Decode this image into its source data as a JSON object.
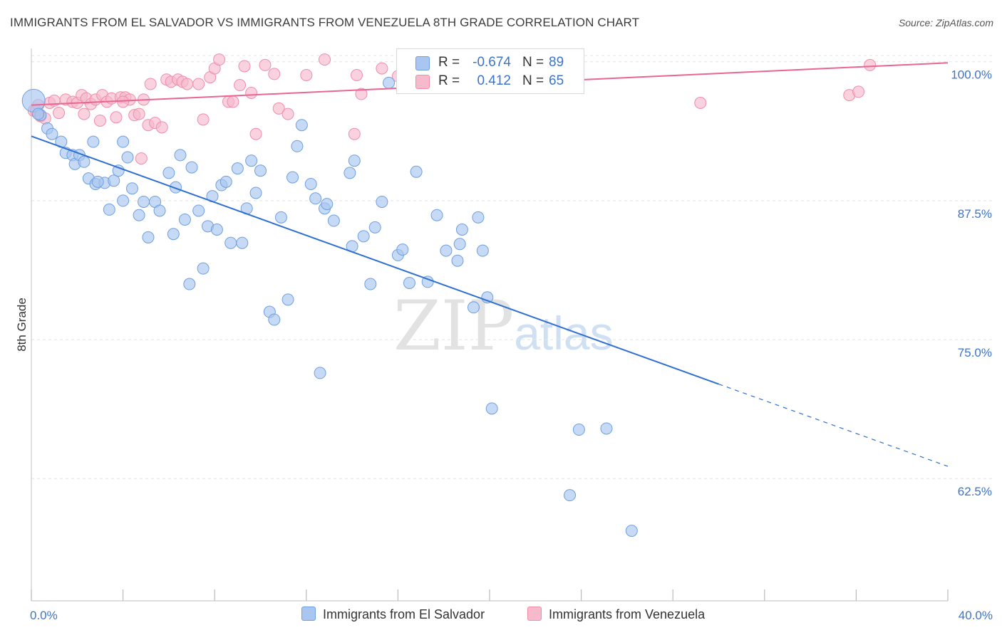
{
  "header": {
    "title": "IMMIGRANTS FROM EL SALVADOR VS IMMIGRANTS FROM VENEZUELA 8TH GRADE CORRELATION CHART",
    "source": "Source: ZipAtlas.com"
  },
  "watermark": {
    "zip": "ZIP",
    "atlas": "atlas"
  },
  "legend": {
    "r_label": "R =",
    "n_label": "N =",
    "rows": [
      {
        "r": "-0.674",
        "n": "89",
        "color": "#a8c6f0",
        "stroke": "#6f9fe0"
      },
      {
        "r": "0.412",
        "n": "65",
        "color": "#f7b9cc",
        "stroke": "#ee8eaa"
      }
    ]
  },
  "bottom_legend": {
    "series1": "Immigrants from El Salvador",
    "series2": "Immigrants from Venezuela"
  },
  "colors": {
    "blue_fill": "#a8c6f0",
    "blue_stroke": "#6f9fe0",
    "blue_line": "#2f6fd0",
    "pink_fill": "#f7b9cc",
    "pink_stroke": "#ee8eaa",
    "pink_line": "#e8668f",
    "tick_text": "#3b74c9"
  },
  "chart_data": {
    "type": "scatter",
    "title": "IMMIGRANTS FROM EL SALVADOR VS IMMIGRANTS FROM VENEZUELA 8TH GRADE CORRELATION CHART",
    "xlabel": "",
    "ylabel": "8th Grade",
    "xlim": [
      0,
      40
    ],
    "ylim": [
      51.5,
      101.2
    ],
    "x_tick_labels": [
      "0.0%",
      "40.0%"
    ],
    "y_ticks": [
      62.5,
      75.0,
      87.5,
      100.0
    ],
    "y_tick_labels": [
      "62.5%",
      "75.0%",
      "87.5%",
      "100.0%"
    ],
    "grid": true,
    "series": [
      {
        "name": "Immigrants from El Salvador",
        "trend": {
          "x0": 0,
          "y0": 93.3,
          "x1": 30.0,
          "y1": 71.0,
          "dash_to_x": 40,
          "dash_to_y": 63.6
        },
        "points": [
          [
            0.1,
            96.5
          ],
          [
            0.4,
            95.2
          ],
          [
            0.7,
            94.0
          ],
          [
            0.9,
            93.5
          ],
          [
            1.3,
            92.8
          ],
          [
            1.5,
            91.8
          ],
          [
            1.8,
            91.6
          ],
          [
            1.9,
            90.8
          ],
          [
            2.1,
            91.6
          ],
          [
            2.3,
            91.0
          ],
          [
            2.5,
            89.5
          ],
          [
            2.8,
            89.0
          ],
          [
            2.7,
            92.8
          ],
          [
            3.2,
            89.1
          ],
          [
            3.4,
            86.7
          ],
          [
            3.6,
            89.3
          ],
          [
            3.8,
            90.2
          ],
          [
            4.0,
            87.5
          ],
          [
            4.2,
            91.4
          ],
          [
            4.4,
            88.6
          ],
          [
            4.7,
            86.2
          ],
          [
            4.9,
            87.4
          ],
          [
            5.1,
            84.2
          ],
          [
            5.4,
            87.4
          ],
          [
            5.6,
            86.6
          ],
          [
            6.0,
            90.0
          ],
          [
            6.2,
            84.5
          ],
          [
            6.3,
            88.7
          ],
          [
            6.5,
            91.6
          ],
          [
            6.7,
            85.8
          ],
          [
            6.9,
            80.0
          ],
          [
            7.0,
            90.5
          ],
          [
            7.3,
            86.6
          ],
          [
            7.5,
            81.4
          ],
          [
            7.7,
            85.2
          ],
          [
            7.9,
            87.9
          ],
          [
            8.1,
            84.9
          ],
          [
            8.3,
            88.9
          ],
          [
            8.5,
            89.2
          ],
          [
            8.7,
            83.7
          ],
          [
            9.0,
            90.4
          ],
          [
            9.2,
            83.7
          ],
          [
            9.4,
            86.8
          ],
          [
            9.6,
            91.1
          ],
          [
            9.8,
            88.2
          ],
          [
            10.0,
            90.2
          ],
          [
            10.4,
            77.5
          ],
          [
            10.6,
            76.8
          ],
          [
            10.9,
            86.0
          ],
          [
            11.2,
            78.6
          ],
          [
            11.4,
            89.6
          ],
          [
            11.6,
            92.4
          ],
          [
            11.8,
            94.3
          ],
          [
            12.2,
            89.0
          ],
          [
            12.4,
            87.7
          ],
          [
            12.8,
            86.8
          ],
          [
            12.9,
            87.2
          ],
          [
            13.2,
            85.7
          ],
          [
            13.9,
            90.0
          ],
          [
            14.0,
            83.4
          ],
          [
            14.1,
            91.1
          ],
          [
            14.5,
            84.3
          ],
          [
            14.8,
            80.0
          ],
          [
            15.0,
            85.1
          ],
          [
            15.3,
            87.4
          ],
          [
            15.6,
            98.1
          ],
          [
            16.0,
            82.6
          ],
          [
            16.2,
            83.1
          ],
          [
            16.5,
            80.1
          ],
          [
            16.8,
            90.1
          ],
          [
            17.3,
            80.2
          ],
          [
            17.7,
            86.2
          ],
          [
            18.1,
            83.0
          ],
          [
            18.6,
            82.1
          ],
          [
            18.7,
            83.6
          ],
          [
            18.8,
            84.9
          ],
          [
            19.3,
            77.9
          ],
          [
            19.5,
            86.0
          ],
          [
            19.7,
            83.0
          ],
          [
            19.9,
            78.8
          ],
          [
            20.1,
            68.8
          ],
          [
            12.6,
            72.0
          ],
          [
            23.9,
            66.9
          ],
          [
            25.1,
            67.0
          ],
          [
            23.5,
            61.0
          ],
          [
            26.2,
            57.8
          ],
          [
            4.0,
            92.8
          ],
          [
            2.9,
            89.2
          ],
          [
            0.3,
            95.3
          ]
        ]
      },
      {
        "name": "Immigrants from Venezuela",
        "trend": {
          "x0": 0,
          "y0": 96.1,
          "x1": 40,
          "y1": 99.9
        },
        "points": [
          [
            0.1,
            95.6
          ],
          [
            0.3,
            96.1
          ],
          [
            0.4,
            95.1
          ],
          [
            0.6,
            94.9
          ],
          [
            0.8,
            96.3
          ],
          [
            1.0,
            96.5
          ],
          [
            1.2,
            95.4
          ],
          [
            1.5,
            96.6
          ],
          [
            1.8,
            96.4
          ],
          [
            2.0,
            96.3
          ],
          [
            2.2,
            97.0
          ],
          [
            2.4,
            96.7
          ],
          [
            2.6,
            96.2
          ],
          [
            2.8,
            96.6
          ],
          [
            3.0,
            94.7
          ],
          [
            3.1,
            97.0
          ],
          [
            3.3,
            96.4
          ],
          [
            3.5,
            96.7
          ],
          [
            3.7,
            95.0
          ],
          [
            3.9,
            96.8
          ],
          [
            4.1,
            96.8
          ],
          [
            4.3,
            96.6
          ],
          [
            4.5,
            95.2
          ],
          [
            4.7,
            95.3
          ],
          [
            4.9,
            96.6
          ],
          [
            5.1,
            94.3
          ],
          [
            5.2,
            98.0
          ],
          [
            5.4,
            94.5
          ],
          [
            5.7,
            94.1
          ],
          [
            5.9,
            98.4
          ],
          [
            6.1,
            98.2
          ],
          [
            6.4,
            98.4
          ],
          [
            6.6,
            98.2
          ],
          [
            6.8,
            98.0
          ],
          [
            7.3,
            98.0
          ],
          [
            7.5,
            94.8
          ],
          [
            7.8,
            98.6
          ],
          [
            8.0,
            99.4
          ],
          [
            8.2,
            100.2
          ],
          [
            8.6,
            96.4
          ],
          [
            8.8,
            96.4
          ],
          [
            9.1,
            97.9
          ],
          [
            9.3,
            99.6
          ],
          [
            9.6,
            97.2
          ],
          [
            9.8,
            93.5
          ],
          [
            10.2,
            99.7
          ],
          [
            10.6,
            98.9
          ],
          [
            10.8,
            95.8
          ],
          [
            11.2,
            95.3
          ],
          [
            12.0,
            98.8
          ],
          [
            12.8,
            100.2
          ],
          [
            14.1,
            93.5
          ],
          [
            14.2,
            98.8
          ],
          [
            14.4,
            97.1
          ],
          [
            15.3,
            99.4
          ],
          [
            16.0,
            98.7
          ],
          [
            4.8,
            91.3
          ],
          [
            19.3,
            100.0
          ],
          [
            29.2,
            96.3
          ],
          [
            35.7,
            97.0
          ],
          [
            36.1,
            97.3
          ],
          [
            36.6,
            99.7
          ],
          [
            4.0,
            96.4
          ],
          [
            2.3,
            95.3
          ],
          [
            0.2,
            95.6
          ]
        ]
      }
    ]
  }
}
